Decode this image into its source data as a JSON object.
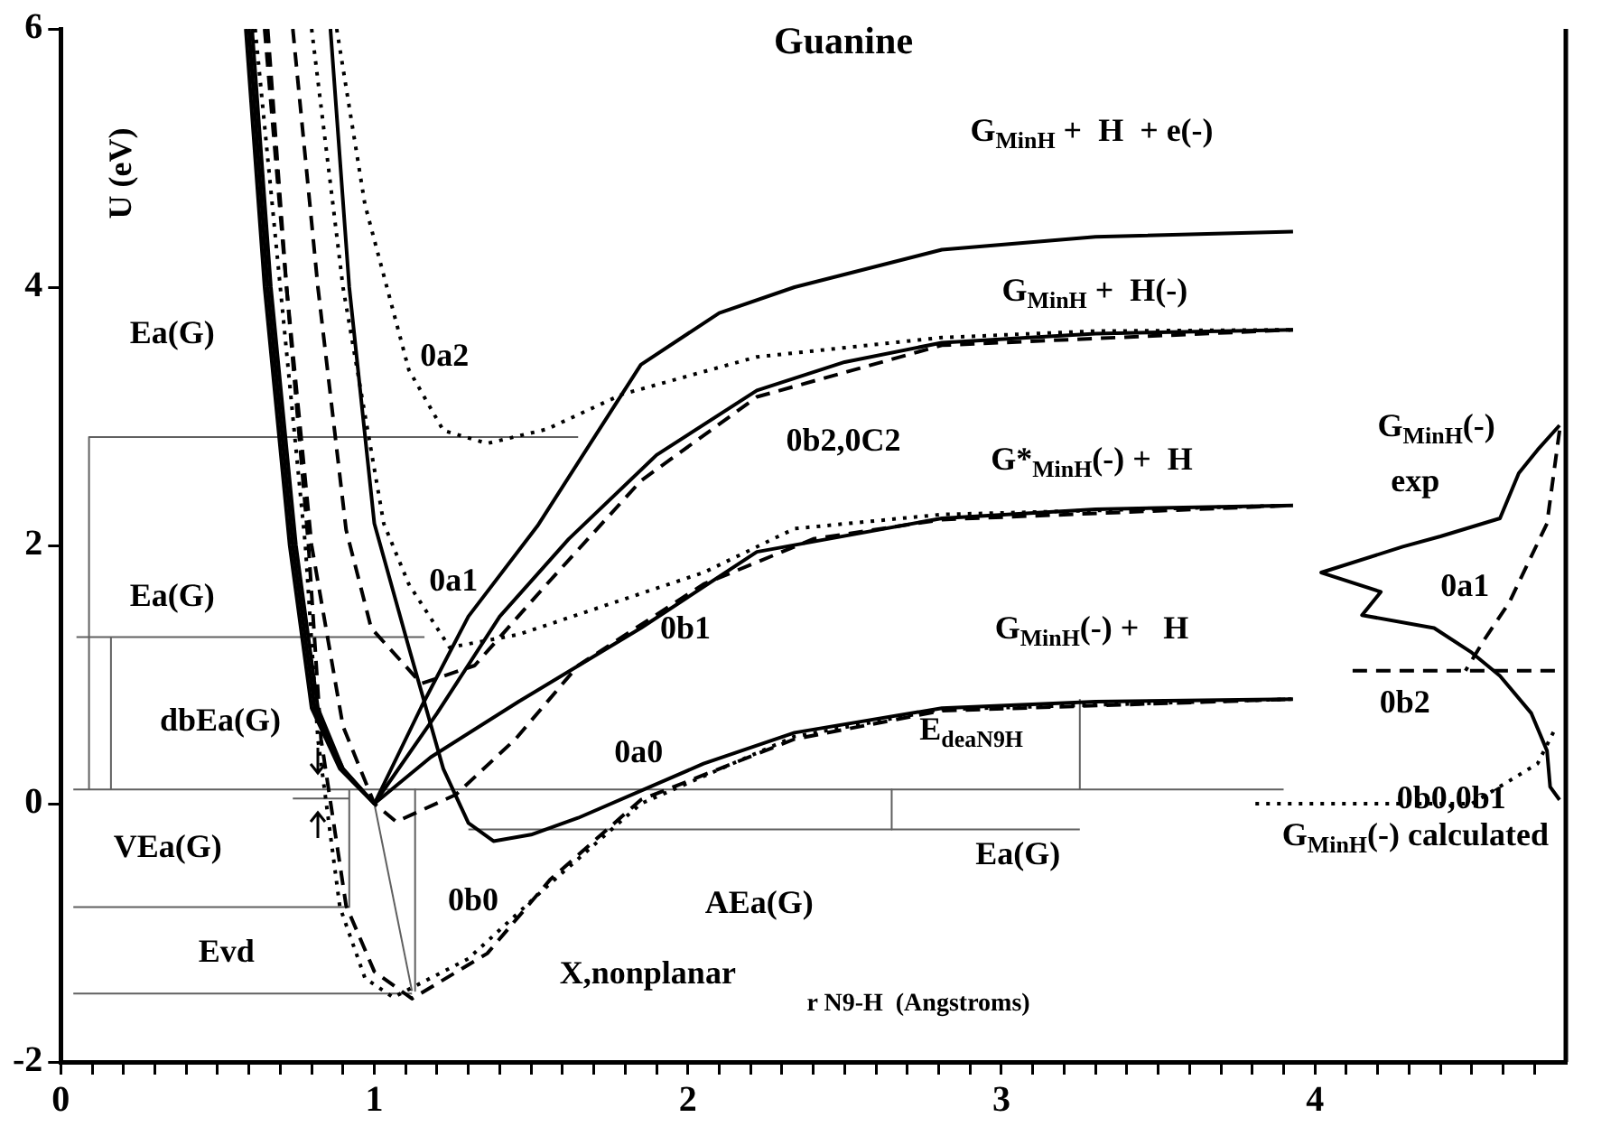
{
  "chart_data": {
    "type": "line",
    "title": "Guanine",
    "xlabel": "r N9-H  (Angstroms)",
    "ylabel": "U (eV)",
    "xlim": [
      0,
      4.8
    ],
    "ylim": [
      -2,
      6
    ],
    "xticks": [
      0,
      {
        "value": 0.1,
        "label": null
      },
      {
        "value": 0.2,
        "label": null
      },
      {
        "value": 0.3,
        "label": null
      },
      {
        "value": 0.4,
        "label": null
      },
      {
        "value": 0.5,
        "label": null
      },
      {
        "value": 0.6,
        "label": null
      },
      {
        "value": 0.7,
        "label": null
      },
      {
        "value": 0.8,
        "label": null
      },
      {
        "value": 0.9,
        "label": null
      },
      1,
      {
        "value": 1.1,
        "label": null
      },
      {
        "value": 1.2,
        "label": null
      },
      {
        "value": 1.3,
        "label": null
      },
      {
        "value": 1.4,
        "label": null
      },
      {
        "value": 1.5,
        "label": null
      },
      {
        "value": 1.6,
        "label": null
      },
      {
        "value": 1.7,
        "label": null
      },
      {
        "value": 1.8,
        "label": null
      },
      {
        "value": 1.9,
        "label": null
      },
      2,
      {
        "value": 2.1,
        "label": null
      },
      {
        "value": 2.2,
        "label": null
      },
      {
        "value": 2.3,
        "label": null
      },
      {
        "value": 2.4,
        "label": null
      },
      {
        "value": 2.5,
        "label": null
      },
      {
        "value": 2.6,
        "label": null
      },
      {
        "value": 2.7,
        "label": null
      },
      {
        "value": 2.8,
        "label": null
      },
      {
        "value": 2.9,
        "label": null
      },
      3,
      {
        "value": 3.1,
        "label": null
      },
      {
        "value": 3.2,
        "label": null
      },
      {
        "value": 3.3,
        "label": null
      },
      {
        "value": 3.4,
        "label": null
      },
      {
        "value": 3.5,
        "label": null
      },
      {
        "value": 3.6,
        "label": null
      },
      {
        "value": 3.7,
        "label": null
      },
      {
        "value": 3.8,
        "label": null
      },
      {
        "value": 3.9,
        "label": null
      },
      4,
      {
        "value": 4.1,
        "label": null
      },
      {
        "value": 4.2,
        "label": null
      },
      {
        "value": 4.3,
        "label": null
      },
      {
        "value": 4.4,
        "label": null
      },
      {
        "value": 4.5,
        "label": null
      },
      {
        "value": 4.6,
        "label": null
      },
      {
        "value": 4.7,
        "label": null
      }
    ],
    "yticks": [
      -2,
      0,
      2,
      4,
      6
    ],
    "grid": false,
    "legend": false,
    "marker": "none",
    "series": [
      {
        "color": "#000000",
        "line_style": "solid",
        "x": [
          0.59,
          0.65,
          0.73,
          0.8,
          0.89,
          1.0,
          1.15,
          1.3,
          1.52,
          1.85,
          2.1,
          2.34,
          2.81,
          3.3,
          3.93
        ],
        "values": [
          6,
          4,
          2,
          0.74,
          0.27,
          0,
          0.75,
          1.45,
          2.15,
          3.4,
          3.8,
          4.0,
          4.29,
          4.39,
          4.43
        ]
      },
      {
        "color": "#000000",
        "line_style": "solid",
        "x": [
          0.6,
          0.66,
          0.74,
          0.81,
          0.9,
          1.0,
          1.2,
          1.4,
          1.62,
          1.9,
          2.22,
          2.5,
          2.81,
          3.3,
          3.93
        ],
        "values": [
          6,
          4,
          2,
          0.74,
          0.27,
          0,
          0.7,
          1.45,
          2.05,
          2.7,
          3.2,
          3.42,
          3.57,
          3.64,
          3.67
        ]
      },
      {
        "color": "#000000",
        "line_style": "solid",
        "x": [
          0.61,
          0.67,
          0.75,
          0.82,
          0.9,
          1.0,
          1.18,
          1.46,
          1.85,
          2.22,
          2.81,
          3.3,
          3.93
        ],
        "values": [
          6,
          4,
          2,
          0.74,
          0.27,
          0,
          0.36,
          0.79,
          1.36,
          1.95,
          2.21,
          2.28,
          2.31
        ]
      },
      {
        "color": "#000000",
        "line_style": "solid",
        "x": [
          0.86,
          0.92,
          1.0,
          1.11,
          1.22,
          1.3,
          1.38,
          1.5,
          1.65,
          2.05,
          2.34,
          2.81,
          3.3,
          3.93
        ],
        "values": [
          6,
          4,
          2.17,
          1.21,
          0.27,
          -0.15,
          -0.29,
          -0.24,
          -0.11,
          0.31,
          0.55,
          0.74,
          0.79,
          0.81
        ]
      },
      {
        "color": "#000000",
        "line_style": "dotted",
        "x": [
          0.88,
          0.97,
          1.11,
          1.22,
          1.36,
          1.55,
          1.79,
          2.22,
          2.81,
          3.3,
          3.93
        ],
        "values": [
          6,
          4.64,
          3.36,
          2.89,
          2.79,
          2.9,
          3.17,
          3.46,
          3.61,
          3.66,
          3.67
        ]
      },
      {
        "color": "#000000",
        "line_style": "dotted",
        "x": [
          0.8,
          0.9,
          1.03,
          1.11,
          1.24,
          1.46,
          2.05,
          2.34,
          2.81,
          3.93
        ],
        "values": [
          6,
          4,
          2.17,
          1.7,
          1.21,
          1.31,
          1.79,
          2.13,
          2.24,
          2.31
        ]
      },
      {
        "color": "#000000",
        "line_style": "dashed",
        "x": [
          0.74,
          0.82,
          0.91,
          0.99,
          1.15,
          1.32,
          1.55,
          1.85,
          2.22,
          2.81,
          3.93
        ],
        "values": [
          6,
          4,
          2.12,
          1.36,
          0.93,
          1.07,
          1.7,
          2.5,
          3.15,
          3.55,
          3.67
        ]
      },
      {
        "color": "#000000",
        "line_style": "dashed",
        "x": [
          0.65,
          0.72,
          0.8,
          0.9,
          1.0,
          1.07,
          1.26,
          1.45,
          1.65,
          2.05,
          2.4,
          2.81,
          3.93
        ],
        "values": [
          6,
          4,
          2,
          0.6,
          0,
          -0.14,
          0.07,
          0.5,
          1.07,
          1.7,
          2.05,
          2.2,
          2.31
        ]
      },
      {
        "color": "#000000",
        "line_style": "dashed",
        "x": [
          0.66,
          0.72,
          0.79,
          0.83,
          0.91,
          1.0,
          1.12,
          1.36,
          1.56,
          1.85,
          2.34,
          2.81,
          3.93
        ],
        "values": [
          6,
          4,
          2,
          0.5,
          -0.79,
          -1.3,
          -1.51,
          -1.16,
          -0.59,
          0.03,
          0.5,
          0.72,
          0.81
        ]
      },
      {
        "color": "#000000",
        "line_style": "dotted",
        "x": [
          0.62,
          0.7,
          0.78,
          0.82,
          0.89,
          0.97,
          1.06,
          1.3,
          1.56,
          1.85,
          2.34,
          2.81,
          3.93
        ],
        "values": [
          6,
          4,
          2,
          0.5,
          -0.8,
          -1.35,
          -1.5,
          -1.2,
          -0.62,
          0,
          0.52,
          0.73,
          0.81
        ]
      },
      {
        "color": "#000000",
        "line_style": "solid",
        "x": [
          4.78,
          4.71,
          4.65,
          4.59,
          4.4,
          4.28,
          4.02,
          4.21,
          4.15,
          4.38,
          4.5,
          4.59,
          4.69,
          4.74,
          4.75,
          4.78
        ],
        "values": [
          2.93,
          2.74,
          2.56,
          2.21,
          2.07,
          1.99,
          1.79,
          1.64,
          1.46,
          1.36,
          1.17,
          0.99,
          0.7,
          0.41,
          0.13,
          0.03
        ]
      },
      {
        "color": "#000000",
        "line_style": "dashed",
        "x": [
          4.78,
          4.74,
          4.62,
          4.54,
          4.48
        ],
        "values": [
          2.89,
          2.17,
          1.56,
          1.27,
          1.03
        ]
      },
      {
        "color": "#000000",
        "line_style": "dashed",
        "x": [
          4.12,
          4.78
        ],
        "values": [
          1.03,
          1.03
        ]
      },
      {
        "color": "#000000",
        "line_style": "dotted",
        "x": [
          3.81,
          4.5,
          4.71,
          4.77
        ],
        "values": [
          0,
          0,
          0.31,
          0.6
        ]
      },
      {
        "color": "#606060",
        "line_style": "solid",
        "x": [
          0.09,
          0.09,
          1.65
        ],
        "values": [
          0.11,
          2.84,
          2.84
        ]
      },
      {
        "color": "#606060",
        "line_style": "solid",
        "x": [
          0.16,
          0.16
        ],
        "values": [
          0.11,
          1.29
        ]
      },
      {
        "color": "#606060",
        "line_style": "solid",
        "x": [
          0.05,
          1.16
        ],
        "values": [
          1.29,
          1.29
        ]
      },
      {
        "color": "#606060",
        "line_style": "solid",
        "x": [
          0.04,
          3.9
        ],
        "values": [
          0.11,
          0.11
        ]
      },
      {
        "color": "#606060",
        "line_style": "solid",
        "x": [
          0.74,
          0.92
        ],
        "values": [
          0.04,
          0.04
        ]
      },
      {
        "color": "#606060",
        "line_style": "solid",
        "x": [
          1.3,
          3.25
        ],
        "values": [
          -0.2,
          -0.2
        ]
      },
      {
        "color": "#606060",
        "line_style": "solid",
        "x": [
          2.65,
          2.65
        ],
        "values": [
          0.11,
          -0.2
        ]
      },
      {
        "color": "#606060",
        "line_style": "solid",
        "x": [
          3.25,
          3.25
        ],
        "values": [
          0.11,
          0.81
        ]
      },
      {
        "color": "#606060",
        "line_style": "solid",
        "x": [
          0.04,
          0.92,
          0.92
        ],
        "values": [
          -0.8,
          -0.8,
          0.11
        ]
      },
      {
        "color": "#606060",
        "line_style": "solid",
        "x": [
          0.04,
          1.12
        ],
        "values": [
          -1.47,
          -1.47
        ]
      },
      {
        "color": "#606060",
        "line_style": "solid",
        "x": [
          1.13,
          1.13
        ],
        "values": [
          0.11,
          -1.45
        ]
      },
      {
        "color": "#606060",
        "line_style": "solid",
        "x": [
          1.0,
          1.12
        ],
        "values": [
          0,
          -1.45
        ]
      }
    ],
    "annotations": [
      "G$_{MinH}$ +  H  + e(-)",
      "G$_{MinH}$ +  H(-)",
      "G*$_{MinH}$(-) +  H",
      "G$_{MinH}$(-) +   H",
      "E$_{deaN9H}$",
      "Ea(G)",
      "AEa(G)",
      "X,nonplanar",
      "0b0",
      "0a0",
      "0b1",
      "0b2,0C2",
      "0a2",
      "0a1",
      "Ea(G)",
      "Ea(G)",
      "dbEa(G)",
      "VEa(G)",
      "Evd",
      "G$_{MinH}$(-)",
      "exp",
      "0a1",
      "0b2",
      "0b0,0b1",
      "G$_{MinH}$(-) calculated"
    ]
  }
}
